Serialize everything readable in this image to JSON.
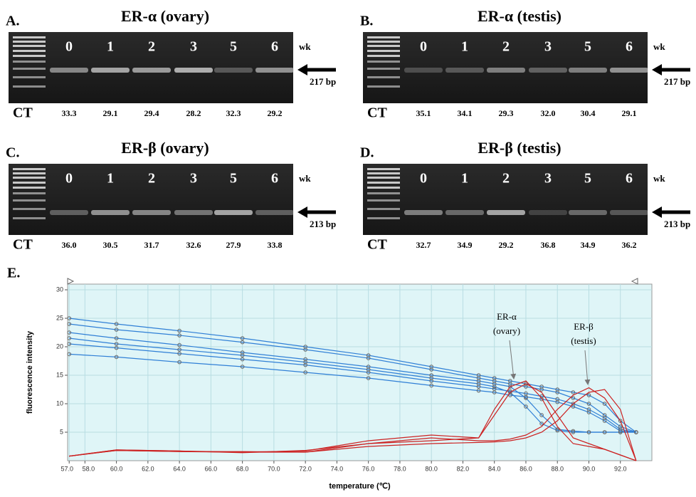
{
  "panels": [
    {
      "label": "A.",
      "title": "ER-α (ovary)",
      "lanes": [
        "0",
        "1",
        "2",
        "3",
        "5",
        "6"
      ],
      "unit": "wk",
      "band_size": "217 bp",
      "ct_label": "CT",
      "ct": [
        "33.3",
        "29.1",
        "29.4",
        "28.2",
        "32.3",
        "29.2"
      ]
    },
    {
      "label": "B.",
      "title": "ER-α (testis)",
      "lanes": [
        "0",
        "1",
        "2",
        "3",
        "5",
        "6"
      ],
      "unit": "wk",
      "band_size": "217 bp",
      "ct_label": "CT",
      "ct": [
        "35.1",
        "34.1",
        "29.3",
        "32.0",
        "30.4",
        "29.1"
      ]
    },
    {
      "label": "C.",
      "title": "ER-β (ovary)",
      "lanes": [
        "0",
        "1",
        "2",
        "3",
        "5",
        "6"
      ],
      "unit": "wk",
      "band_size": "213 bp",
      "ct_label": "CT",
      "ct": [
        "36.0",
        "30.5",
        "31.7",
        "32.6",
        "27.9",
        "33.8"
      ]
    },
    {
      "label": "D.",
      "title": "ER-β (testis)",
      "lanes": [
        "0",
        "1",
        "2",
        "3",
        "5",
        "6"
      ],
      "unit": "wk",
      "band_size": "213 bp",
      "ct_label": "CT",
      "ct": [
        "32.7",
        "34.9",
        "29.2",
        "36.8",
        "34.9",
        "36.2"
      ]
    }
  ],
  "chart_label": "E.",
  "chart_data": {
    "type": "line",
    "xlabel": "temperature (℃)",
    "ylabel": "fluorescence intensity",
    "xlim": [
      56.9,
      94.0
    ],
    "ylim": [
      0,
      31
    ],
    "xticks": [
      {
        "value": 57,
        "label": "57.0"
      },
      {
        "value": 58,
        "label": "58.0"
      },
      {
        "value": 60,
        "label": "60.0"
      },
      {
        "value": 62,
        "label": "62.0"
      },
      {
        "value": 64,
        "label": "64.0"
      },
      {
        "value": 66,
        "label": "66.0"
      },
      {
        "value": 68,
        "label": "68.0"
      },
      {
        "value": 70,
        "label": "70.0"
      },
      {
        "value": 72,
        "label": "72.0"
      },
      {
        "value": 74,
        "label": "74.0"
      },
      {
        "value": 76,
        "label": "76.0"
      },
      {
        "value": 78,
        "label": "78.0"
      },
      {
        "value": 80,
        "label": "80.0"
      },
      {
        "value": 82,
        "label": "82.0"
      },
      {
        "value": 84,
        "label": "84.0"
      },
      {
        "value": 86,
        "label": "86.0"
      },
      {
        "value": 88,
        "label": "88.0"
      },
      {
        "value": 90,
        "label": "90.0"
      },
      {
        "value": 92,
        "label": "92.0"
      }
    ],
    "yticks": [
      5,
      10,
      15,
      20,
      25,
      30
    ],
    "grid": true,
    "background": "#dff5f7",
    "annotations": [
      "ER-α",
      "(ovary)",
      "ER-β",
      "(testis)"
    ],
    "x": [
      57,
      60,
      64,
      68,
      72,
      76,
      80,
      83,
      84,
      85,
      86,
      87,
      88,
      89,
      90,
      91,
      92,
      93
    ],
    "series": [
      {
        "color": "#2f7fd6",
        "marker": "circle",
        "values": [
          25,
          24,
          22.8,
          21.5,
          20,
          18.5,
          16.5,
          15,
          14.5,
          14,
          13.5,
          13,
          12.5,
          12,
          11.5,
          10,
          7,
          5
        ]
      },
      {
        "color": "#2f7fd6",
        "marker": "circle",
        "values": [
          24,
          23,
          22,
          20.8,
          19.5,
          18,
          16,
          14.5,
          14,
          13.5,
          13,
          12.5,
          12,
          11,
          10,
          8,
          6,
          5
        ]
      },
      {
        "color": "#2f7fd6",
        "marker": "circle",
        "values": [
          22.5,
          21.5,
          20.3,
          19,
          17.8,
          16.5,
          15,
          14,
          13.5,
          13,
          11,
          8,
          5.5,
          5.2,
          5,
          5,
          5,
          5
        ]
      },
      {
        "color": "#2f7fd6",
        "marker": "circle",
        "values": [
          21.5,
          20.5,
          19.5,
          18.5,
          17.3,
          16,
          14.5,
          13.5,
          13,
          12,
          9.5,
          6.5,
          5.3,
          5,
          5,
          5,
          5,
          5
        ]
      },
      {
        "color": "#2f7fd6",
        "marker": "circle",
        "values": [
          20.5,
          19.8,
          18.8,
          17.8,
          16.8,
          15.5,
          14,
          13,
          12.6,
          12.2,
          11.8,
          11.3,
          10.8,
          10,
          9,
          7.5,
          5.5,
          5
        ]
      },
      {
        "color": "#2f7fd6",
        "marker": "circle",
        "values": [
          18.7,
          18.2,
          17.3,
          16.5,
          15.5,
          14.5,
          13.2,
          12.3,
          12,
          11.5,
          11.2,
          10.8,
          10.3,
          9.5,
          8.5,
          7,
          5.2,
          5
        ]
      },
      {
        "color": "#cc2222",
        "values": [
          0.8,
          1.8,
          1.6,
          1.5,
          1.5,
          3,
          3.5,
          4,
          8,
          12,
          13.5,
          12,
          8,
          4,
          3,
          2,
          1,
          0
        ]
      },
      {
        "color": "#cc2222",
        "values": [
          0.8,
          1.9,
          1.7,
          1.5,
          1.7,
          3.5,
          4.5,
          4,
          9,
          13,
          14,
          11,
          6,
          3,
          2.5,
          2,
          1,
          0
        ]
      },
      {
        "color": "#cc2222",
        "values": [
          0.8,
          1.8,
          1.6,
          1.6,
          1.5,
          2.5,
          3,
          3.2,
          3.3,
          3.5,
          4,
          5,
          7,
          10,
          12,
          12.5,
          9,
          0
        ]
      },
      {
        "color": "#cc2222",
        "values": [
          0.8,
          1.9,
          1.7,
          1.4,
          1.8,
          3,
          4,
          3.5,
          3.5,
          3.8,
          4.5,
          6,
          9,
          11.5,
          12.8,
          11,
          7,
          0
        ]
      }
    ]
  }
}
